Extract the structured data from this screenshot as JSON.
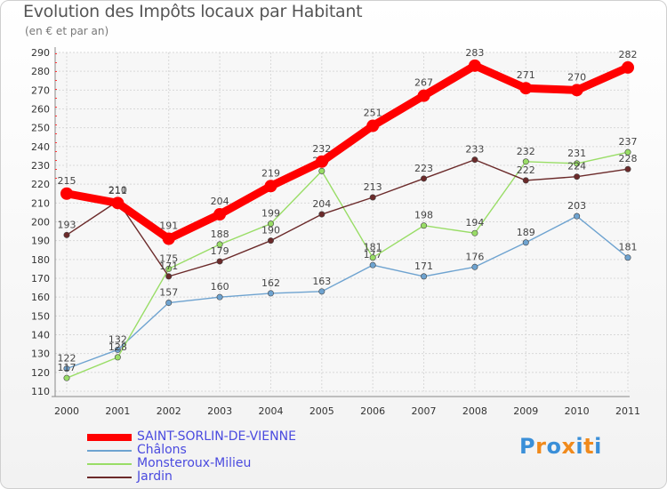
{
  "page": {
    "title": "Evolution des Impôts locaux par Habitant",
    "subtitle": "(en € et par an)"
  },
  "chart_data": {
    "type": "line",
    "title": "Evolution des Impôts locaux par Habitant",
    "subtitle": "(en € et par an)",
    "xlabel": "",
    "ylabel": "",
    "categories": [
      "2000",
      "2001",
      "2002",
      "2003",
      "2004",
      "2005",
      "2006",
      "2007",
      "2008",
      "2009",
      "2010",
      "2011"
    ],
    "ylim": [
      110,
      290
    ],
    "yticks": [
      110,
      120,
      130,
      140,
      150,
      160,
      170,
      180,
      190,
      200,
      210,
      220,
      230,
      240,
      250,
      260,
      270,
      280,
      290
    ],
    "grid": true,
    "legend_position": "bottom-left",
    "series": [
      {
        "name": "SAINT-SORLIN-DE-VIENNE",
        "color": "#ff0000",
        "values": [
          215,
          210,
          191,
          204,
          219,
          232,
          251,
          267,
          283,
          271,
          270,
          282
        ]
      },
      {
        "name": "Châlons",
        "color": "#6ea3d0",
        "values": [
          122,
          132,
          157,
          160,
          162,
          163,
          177,
          171,
          176,
          189,
          203,
          181
        ]
      },
      {
        "name": "Monsteroux-Milieu",
        "color": "#99dd66",
        "values": [
          117,
          128,
          175,
          188,
          199,
          227,
          181,
          198,
          194,
          232,
          231,
          237
        ]
      },
      {
        "name": "Jardin",
        "color": "#6b2a2a",
        "values": [
          193,
          211,
          171,
          179,
          190,
          204,
          213,
          223,
          233,
          222,
          224,
          228
        ]
      }
    ]
  },
  "logo": {
    "letters": [
      "P",
      "r",
      "o",
      "x",
      "i",
      "t",
      "i"
    ],
    "colors": [
      "#3a8fd8",
      "#f08a1c",
      "#3a8fd8",
      "#f08a1c",
      "#3a8fd8",
      "#f08a1c",
      "#3a8fd8"
    ]
  }
}
